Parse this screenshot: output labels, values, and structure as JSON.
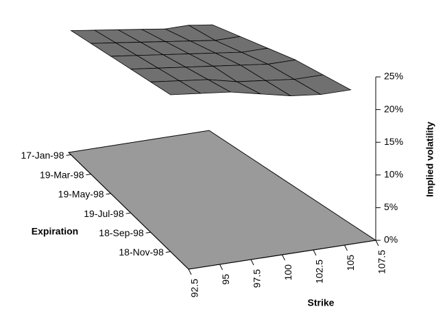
{
  "chart_data": {
    "type": "surface",
    "x_label": "Strike",
    "y_label": "Expiration",
    "z_label": "Implied volatility",
    "x": [
      92.5,
      95,
      97.5,
      100,
      102.5,
      105,
      107.5
    ],
    "y": [
      "17-Jan-98",
      "19-Mar-98",
      "19-May-98",
      "19-Jul-98",
      "18-Sep-98",
      "18-Nov-98"
    ],
    "z": [
      [
        19,
        18.5,
        18,
        17.5,
        17,
        17,
        16.5
      ],
      [
        20,
        19.5,
        19,
        18.5,
        18,
        17.5,
        17.5
      ],
      [
        21,
        20.5,
        20,
        19.5,
        19,
        18.5,
        18.5
      ],
      [
        22,
        21.5,
        21,
        20.5,
        20,
        19.5,
        19.5
      ],
      [
        23,
        22.5,
        22,
        21,
        20.5,
        20,
        20
      ],
      [
        24,
        23.5,
        23,
        22,
        21,
        20.5,
        20.5
      ]
    ],
    "xlim": [
      92.5,
      107.5
    ],
    "xticks": [
      92.5,
      95,
      97.5,
      100,
      102.5,
      105,
      107.5
    ],
    "zlim": [
      0,
      25
    ],
    "zticks": [
      {
        "value": 0,
        "label": "0%"
      },
      {
        "value": 5,
        "label": "5%"
      },
      {
        "value": 10,
        "label": "10%"
      },
      {
        "value": 15,
        "label": "15%"
      },
      {
        "value": 20,
        "label": "20%"
      },
      {
        "value": 25,
        "label": "25%"
      }
    ],
    "color": "#707070",
    "base_color": "#9a9a9a"
  }
}
